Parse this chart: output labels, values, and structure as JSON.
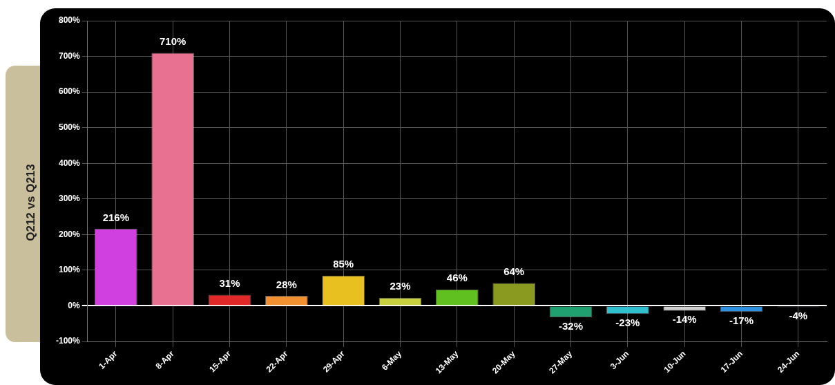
{
  "chart_data": {
    "type": "bar",
    "ylabel": "Q212 vs Q213",
    "categories": [
      "1-Apr",
      "8-Apr",
      "15-Apr",
      "22-Apr",
      "29-Apr",
      "6-May",
      "13-May",
      "20-May",
      "27-May",
      "3-Jun",
      "10-Jun",
      "17-Jun",
      "24-Jun"
    ],
    "values": [
      216,
      710,
      31,
      28,
      85,
      23,
      46,
      64,
      -32,
      -23,
      -14,
      -17,
      -4
    ],
    "colors": [
      "#d040e0",
      "#e87090",
      "#e02828",
      "#f09030",
      "#e8c020",
      "#c8d040",
      "#60c020",
      "#8a9a20",
      "#20a070",
      "#30c0d0",
      "#d0d0d0",
      "#3090e0",
      "#607080"
    ],
    "value_labels": [
      "216%",
      "710%",
      "31%",
      "28%",
      "85%",
      "23%",
      "46%",
      "64%",
      "-32%",
      "-23%",
      "-14%",
      "-17%",
      "-4%"
    ],
    "ylim": [
      -100,
      800
    ],
    "yticks": [
      {
        "value": -100,
        "label": "-100%"
      },
      {
        "value": 0,
        "label": "0%"
      },
      {
        "value": 100,
        "label": "100%"
      },
      {
        "value": 200,
        "label": "200%"
      },
      {
        "value": 300,
        "label": "300%"
      },
      {
        "value": 400,
        "label": "400%"
      },
      {
        "value": 500,
        "label": "500%"
      },
      {
        "value": 600,
        "label": "600%"
      },
      {
        "value": 700,
        "label": "700%"
      },
      {
        "value": 800,
        "label": "800%"
      }
    ],
    "grid": true
  }
}
